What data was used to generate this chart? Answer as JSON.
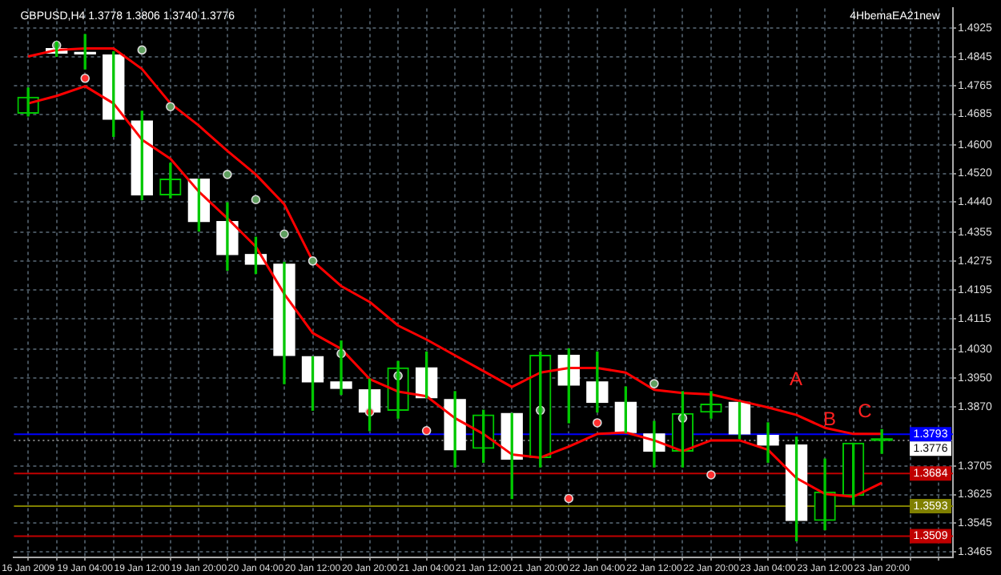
{
  "chart_data": {
    "type": "candlestick",
    "title": "GBPUSD,H4 1.3778 1.3806 1.3740 1.3776",
    "categories": [
      "16 Jan 2009",
      null,
      "19 Jan 04:00",
      null,
      "19 Jan 12:00",
      null,
      "19 Jan 20:00",
      null,
      "20 Jan 04:00",
      null,
      "20 Jan 12:00",
      null,
      "20 Jan 20:00",
      null,
      "21 Jan 04:00",
      null,
      "21 Jan 12:00",
      null,
      "21 Jan 20:00",
      null,
      "22 Jan 04:00",
      null,
      "22 Jan 12:00",
      null,
      "22 Jan 20:00",
      null,
      "23 Jan 04:00",
      null,
      "23 Jan 12:00",
      null,
      "23 Jan 20:00"
    ],
    "colors": [
      "#00c800",
      "#ffffff",
      "#ffffff",
      "#ffffff",
      "#ffffff",
      "#00c800",
      "#ffffff",
      "#ffffff",
      "#ffffff",
      "#ffffff",
      "#ffffff",
      "#ffffff",
      "#ffffff",
      "#00c800",
      "#ffffff",
      "#ffffff",
      "#00c800",
      "#ffffff",
      "#00c800",
      "#ffffff",
      "#ffffff",
      "#ffffff",
      "#ffffff",
      "#00c800",
      "#00c800",
      "#ffffff",
      "#ffffff",
      "#ffffff",
      "#00c800",
      "#00c800",
      "#00c800"
    ],
    "ohlc": [
      [
        1.4688,
        1.4758,
        1.468,
        1.4732
      ],
      [
        1.4868,
        1.4886,
        1.4846,
        1.4855
      ],
      [
        1.4855,
        1.4907,
        1.4811,
        1.4853
      ],
      [
        1.485,
        1.4859,
        1.4623,
        1.4671
      ],
      [
        1.4666,
        1.4693,
        1.4447,
        1.446
      ],
      [
        1.446,
        1.4548,
        1.4452,
        1.4504
      ],
      [
        1.4504,
        1.4504,
        1.4359,
        1.4386
      ],
      [
        1.4386,
        1.4438,
        1.425,
        1.4294
      ],
      [
        1.4294,
        1.4342,
        1.4241,
        1.4267
      ],
      [
        1.4267,
        1.4272,
        1.3934,
        1.4013
      ],
      [
        1.4009,
        1.4009,
        1.386,
        1.3939
      ],
      [
        1.3939,
        1.4053,
        1.3904,
        1.3921
      ],
      [
        1.3917,
        1.3947,
        1.3803,
        1.3855
      ],
      [
        1.386,
        1.3996,
        1.3838,
        1.3978
      ],
      [
        1.3978,
        1.4022,
        1.3895,
        1.3895
      ],
      [
        1.389,
        1.3912,
        1.3702,
        1.375
      ],
      [
        1.3754,
        1.386,
        1.3715,
        1.3847
      ],
      [
        1.3851,
        1.3851,
        1.3614,
        1.3724
      ],
      [
        1.3728,
        1.4022,
        1.3702,
        1.4013
      ],
      [
        1.4013,
        1.4031,
        1.3825,
        1.393
      ],
      [
        1.3939,
        1.4022,
        1.3855,
        1.3882
      ],
      [
        1.3882,
        1.3925,
        1.3798,
        1.3798
      ],
      [
        1.3794,
        1.3829,
        1.3702,
        1.3746
      ],
      [
        1.3746,
        1.3912,
        1.3702,
        1.3851
      ],
      [
        1.3855,
        1.3912,
        1.3838,
        1.3877
      ],
      [
        1.3882,
        1.3882,
        1.3781,
        1.3794
      ],
      [
        1.379,
        1.3825,
        1.3715,
        1.3763
      ],
      [
        1.3763,
        1.3785,
        1.3496,
        1.3553
      ],
      [
        1.3553,
        1.3724,
        1.3527,
        1.3632
      ],
      [
        1.3623,
        1.3768,
        1.3597,
        1.3768
      ],
      [
        1.3778,
        1.3806,
        1.374,
        1.3776
      ]
    ],
    "series": [
      {
        "type": "line",
        "color": "#ff0000",
        "values": [
          1.4846,
          1.4864,
          1.4868,
          1.4868,
          1.4811,
          1.4715,
          1.4653,
          1.4583,
          1.4517,
          1.4434,
          1.4276,
          1.4206,
          1.4162,
          1.4096,
          1.4057,
          1.4013,
          1.3969,
          1.3925,
          1.3965,
          1.3978,
          1.3978,
          1.3965,
          1.3917,
          1.3908,
          1.3904,
          1.3886,
          1.3868,
          1.3847,
          1.3811,
          1.3794,
          1.3794
        ]
      },
      {
        "type": "line",
        "color": "#ff0000",
        "values": [
          1.4715,
          1.4736,
          1.4763,
          1.4715,
          1.4614,
          1.4561,
          1.4469,
          1.4395,
          1.4316,
          1.4184,
          1.4075,
          1.4031,
          1.3947,
          1.3912,
          1.3899,
          1.3838,
          1.3794,
          1.3737,
          1.3728,
          1.3759,
          1.3794,
          1.3798,
          1.3776,
          1.3746,
          1.3776,
          1.3776,
          1.375,
          1.3671,
          1.3627,
          1.3619,
          1.3658
        ]
      },
      {
        "type": "scatter",
        "color": "#5f9f5f",
        "marker": "circle",
        "values": [
          null,
          1.4877,
          null,
          null,
          1.4864,
          1.4706,
          null,
          1.4517,
          1.4447,
          1.4351,
          1.4276,
          1.4018,
          null,
          1.3956,
          null,
          null,
          null,
          null,
          1.386,
          null,
          null,
          null,
          1.3934,
          1.3838,
          null,
          null,
          null,
          null,
          null,
          null,
          null
        ]
      },
      {
        "type": "scatter",
        "color": "#ff3030",
        "marker": "circle",
        "values": [
          null,
          null,
          1.4785,
          null,
          null,
          null,
          null,
          null,
          null,
          null,
          null,
          null,
          1.3855,
          null,
          1.3803,
          null,
          null,
          null,
          null,
          1.3614,
          1.3825,
          null,
          null,
          null,
          1.368,
          null,
          null,
          null,
          null,
          null,
          null
        ]
      }
    ],
    "ylim": [
      1.345,
      1.498
    ],
    "yticks": [
      1.4925,
      1.4845,
      1.4765,
      1.4685,
      {
        "value": 1.46,
        "label": "1.4600"
      },
      {
        "value": 1.452,
        "label": "1.4520"
      },
      {
        "value": 1.444,
        "label": "1.4440"
      },
      1.4355,
      1.4275,
      1.4195,
      1.4115,
      {
        "value": 1.403,
        "label": "1.4030"
      },
      {
        "value": 1.395,
        "label": "1.3950"
      },
      {
        "value": 1.387,
        "label": "1.3870"
      },
      1.3705,
      1.3625,
      1.3545,
      1.3465
    ],
    "ref_lines": [
      {
        "axis": "y",
        "value": 1.3793,
        "label": "1.3793",
        "color": "#0000ff"
      },
      {
        "axis": "y",
        "value": 1.3776,
        "label": "1.3776",
        "color": "#808080",
        "line_style": "dotted"
      },
      {
        "axis": "y",
        "value": 1.3684,
        "label": "1.3684",
        "color": "#c00000"
      },
      {
        "axis": "y",
        "value": 1.3593,
        "label": "1.3593",
        "color": "#808000"
      },
      {
        "axis": "y",
        "value": 1.3509,
        "label": "1.3509",
        "color": "#c00000"
      }
    ],
    "annotations": [
      "4HbemaEA21new",
      "A",
      "B",
      "C"
    ],
    "grid": true,
    "legend": false,
    "line_style": "solid"
  }
}
